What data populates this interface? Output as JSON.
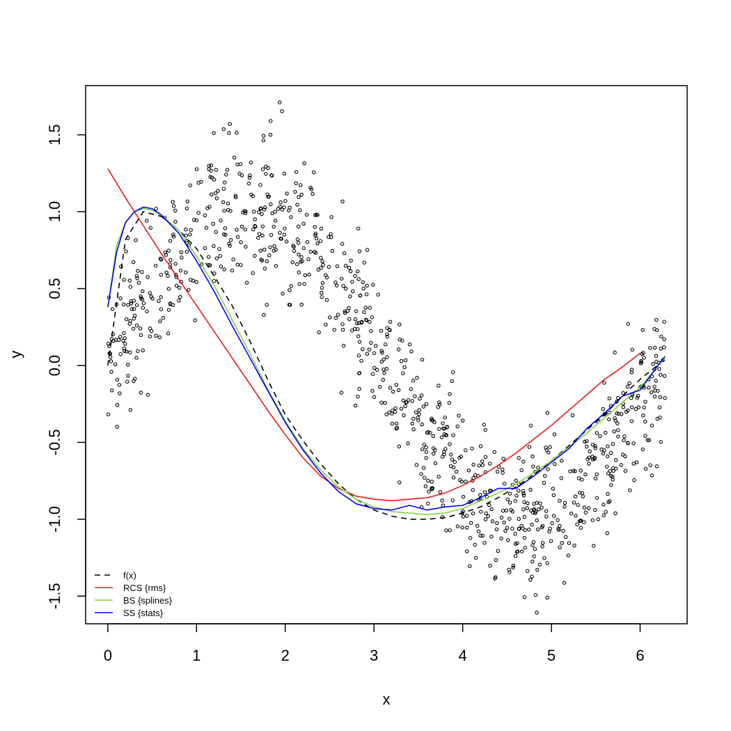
{
  "chart_data": {
    "type": "scatter",
    "title": "",
    "xlabel": "x",
    "ylabel": "y",
    "xlim": [
      -0.25,
      6.53
    ],
    "ylim": [
      -1.68,
      1.82
    ],
    "x_ticks": [
      "0",
      "1",
      "2",
      "3",
      "4",
      "5",
      "6"
    ],
    "y_ticks": [
      "-1.5",
      "-1.0",
      "-0.5",
      "0.0",
      "0.5",
      "1.0",
      "1.5"
    ],
    "grid": false,
    "legend_position": "bottom-left",
    "scatter": {
      "n_points": 1000,
      "x_range": [
        0,
        6.28
      ],
      "underlying_function": "sin(x)",
      "noise_sd": 0.25
    },
    "series": [
      {
        "name": "f(x)",
        "color": "#000000",
        "dash": "8,6",
        "x": [
          0.0,
          0.2,
          0.4,
          0.6,
          0.8,
          1.0,
          1.2,
          1.4,
          1.6,
          1.8,
          2.0,
          2.2,
          2.4,
          2.6,
          2.8,
          3.0,
          3.2,
          3.4,
          3.6,
          3.8,
          4.0,
          4.2,
          4.4,
          4.6,
          4.8,
          5.0,
          5.2,
          5.4,
          5.6,
          5.8,
          6.0,
          6.28
        ],
        "y": [
          0.0,
          0.82,
          1.0,
          0.97,
          0.88,
          0.76,
          0.58,
          0.39,
          0.16,
          -0.09,
          -0.32,
          -0.49,
          -0.64,
          -0.77,
          -0.87,
          -0.94,
          -0.98,
          -1.0,
          -1.0,
          -0.99,
          -0.96,
          -0.92,
          -0.86,
          -0.79,
          -0.71,
          -0.62,
          -0.52,
          -0.42,
          -0.32,
          -0.2,
          -0.09,
          0.04
        ]
      },
      {
        "name": "RCS {rms}",
        "color": "#e41a1c",
        "x": [
          0.0,
          0.2,
          0.4,
          0.6,
          0.8,
          1.0,
          1.2,
          1.4,
          1.6,
          1.8,
          2.0,
          2.2,
          2.4,
          2.6,
          2.8,
          3.0,
          3.2,
          3.4,
          3.6,
          3.8,
          4.0,
          4.2,
          4.4,
          4.6,
          4.8,
          5.0,
          5.2,
          5.4,
          5.6,
          5.8,
          6.0
        ],
        "y": [
          1.28,
          1.09,
          0.91,
          0.73,
          0.56,
          0.39,
          0.22,
          0.05,
          -0.12,
          -0.29,
          -0.45,
          -0.6,
          -0.72,
          -0.8,
          -0.85,
          -0.87,
          -0.88,
          -0.87,
          -0.86,
          -0.83,
          -0.78,
          -0.72,
          -0.65,
          -0.57,
          -0.48,
          -0.39,
          -0.29,
          -0.19,
          -0.09,
          -0.01,
          0.08
        ]
      },
      {
        "name": "BS {splines}",
        "color": "#7fd63a",
        "x": [
          0.0,
          0.1,
          0.2,
          0.3,
          0.4,
          0.5,
          0.6,
          0.8,
          1.0,
          1.2,
          1.4,
          1.6,
          1.8,
          2.0,
          2.2,
          2.4,
          2.6,
          2.8,
          3.0,
          3.2,
          3.4,
          3.6,
          3.8,
          4.0,
          4.2,
          4.4,
          4.6,
          4.8,
          5.0,
          5.2,
          5.4,
          5.6,
          5.8,
          6.0,
          6.28
        ],
        "y": [
          0.38,
          0.78,
          0.93,
          1.0,
          1.02,
          1.01,
          0.98,
          0.88,
          0.71,
          0.52,
          0.3,
          0.08,
          -0.15,
          -0.36,
          -0.54,
          -0.68,
          -0.79,
          -0.87,
          -0.92,
          -0.95,
          -0.96,
          -0.97,
          -0.96,
          -0.93,
          -0.88,
          -0.83,
          -0.77,
          -0.7,
          -0.62,
          -0.53,
          -0.44,
          -0.34,
          -0.24,
          -0.14,
          0.05
        ]
      },
      {
        "name": "SS {stats}",
        "color": "#0000ee",
        "x": [
          0.0,
          0.1,
          0.2,
          0.3,
          0.4,
          0.5,
          0.6,
          0.8,
          1.0,
          1.2,
          1.4,
          1.6,
          1.8,
          2.0,
          2.2,
          2.4,
          2.6,
          2.8,
          3.0,
          3.2,
          3.4,
          3.6,
          3.8,
          4.0,
          4.2,
          4.4,
          4.6,
          4.8,
          5.0,
          5.2,
          5.4,
          5.6,
          5.8,
          6.0,
          6.15,
          6.28
        ],
        "y": [
          0.38,
          0.74,
          0.93,
          1.0,
          1.03,
          1.02,
          0.98,
          0.86,
          0.68,
          0.48,
          0.26,
          0.05,
          -0.16,
          -0.37,
          -0.55,
          -0.7,
          -0.82,
          -0.9,
          -0.93,
          -0.94,
          -0.91,
          -0.94,
          -0.92,
          -0.91,
          -0.86,
          -0.8,
          -0.8,
          -0.72,
          -0.63,
          -0.54,
          -0.41,
          -0.31,
          -0.2,
          -0.16,
          -0.04,
          0.06
        ]
      }
    ]
  }
}
